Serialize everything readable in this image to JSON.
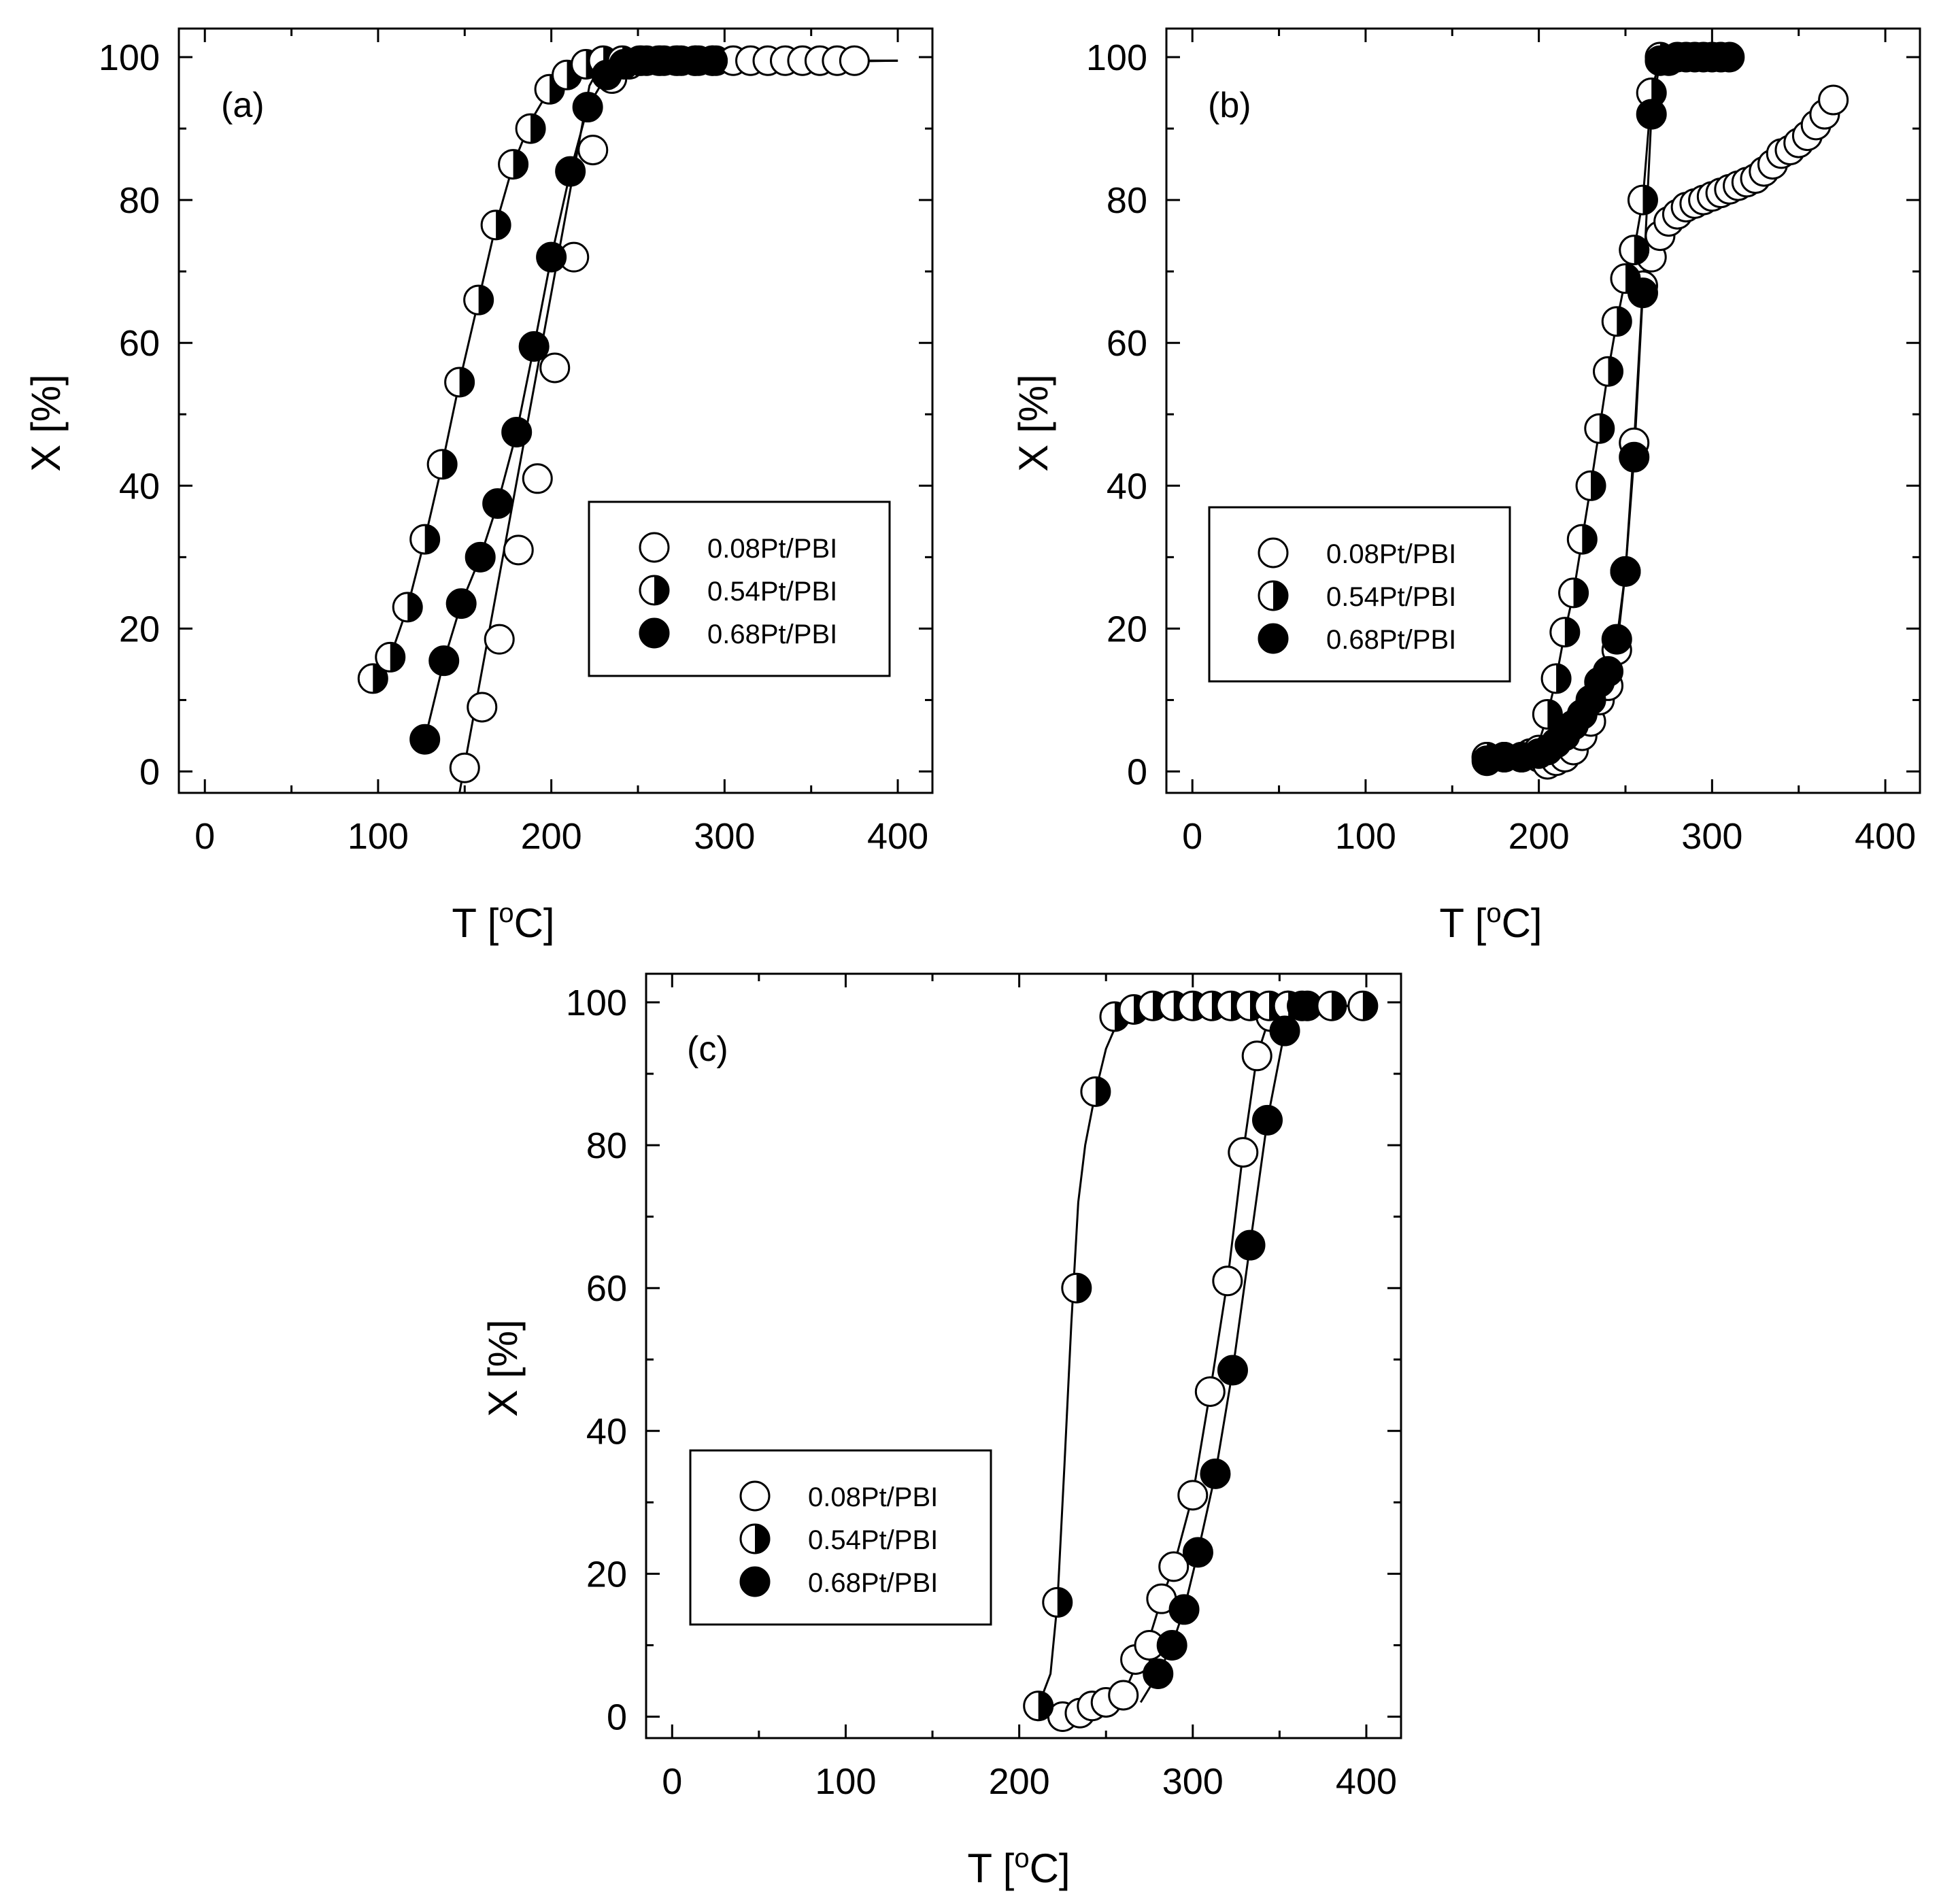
{
  "figure": {
    "colors": {
      "ink": "#000000",
      "background": "#ffffff",
      "open_fill": "#ffffff",
      "filled_fill": "#000000"
    }
  },
  "chart_data": [
    {
      "type": "scatter",
      "panel_label": "(a)",
      "xlabel": "T [oC]",
      "ylabel": "X [%]",
      "xlim": [
        -15,
        420
      ],
      "ylim": [
        -3,
        104
      ],
      "xticks": [
        0,
        100,
        200,
        300,
        400
      ],
      "yticks": [
        0,
        20,
        40,
        60,
        80,
        100
      ],
      "legend_position": "center-right",
      "series": [
        {
          "name": "0.08Pt/PBI",
          "marker": "open-circle",
          "x": [
            150,
            160,
            170,
            181,
            192,
            202,
            213,
            224,
            235,
            245,
            255,
            265,
            275,
            285,
            295,
            305,
            315,
            325,
            335,
            345,
            355,
            365,
            375
          ],
          "y": [
            0.5,
            9,
            18.5,
            31,
            41,
            56.5,
            72,
            87,
            97,
            99,
            99.5,
            99.5,
            99.5,
            99.5,
            99.5,
            99.5,
            99.5,
            99.5,
            99.5,
            99.5,
            99.5,
            99.5,
            99.5
          ],
          "fit_x": [
            147,
            222,
            230,
            400
          ],
          "fit_y": [
            -3,
            96,
            99.5,
            99.5
          ]
        },
        {
          "name": "0.54Pt/PBI",
          "marker": "half-filled-circle",
          "x": [
            97,
            107,
            117,
            127,
            137,
            147,
            158,
            168,
            178,
            188,
            199,
            209,
            220,
            230,
            241,
            251,
            262,
            272,
            283,
            293
          ],
          "y": [
            13,
            16,
            23,
            32.5,
            43,
            54.5,
            66,
            76.5,
            85,
            90,
            95.5,
            97.5,
            99,
            99.5,
            99.5,
            99.5,
            99.5,
            99.5,
            99.5,
            99.5
          ],
          "fit_x": [
            97,
            107,
            117,
            127,
            137,
            147,
            158,
            168,
            178,
            188,
            199,
            209,
            220,
            230,
            400
          ],
          "fit_y": [
            13,
            16,
            23,
            32.5,
            43,
            54.5,
            66,
            76.5,
            85,
            91,
            95.5,
            98,
            99,
            99.5,
            99.5
          ]
        },
        {
          "name": "0.68Pt/PBI",
          "marker": "filled-circle",
          "x": [
            127,
            138,
            148,
            159,
            169,
            180,
            190,
            200,
            211,
            221,
            232,
            242,
            252,
            263,
            273,
            283,
            293
          ],
          "y": [
            4.5,
            15.5,
            23.5,
            30,
            37.5,
            47.5,
            59.5,
            72,
            84,
            93,
            97.5,
            99,
            99.5,
            99.5,
            99.5,
            99.5,
            99.5
          ],
          "fit_x": [
            127,
            138,
            148,
            159,
            169,
            180,
            190,
            200,
            211,
            221,
            232,
            242,
            400
          ],
          "fit_y": [
            4.5,
            15.5,
            23.5,
            30,
            37.5,
            47.5,
            59.5,
            72,
            84,
            93,
            97.5,
            99,
            99.5
          ]
        }
      ]
    },
    {
      "type": "scatter",
      "panel_label": "(b)",
      "xlabel": "T [oC]",
      "ylabel": "X [%]",
      "xlim": [
        -15,
        420
      ],
      "ylim": [
        -3,
        104
      ],
      "xticks": [
        0,
        100,
        200,
        300,
        400
      ],
      "yticks": [
        0,
        20,
        40,
        60,
        80,
        100
      ],
      "legend_position": "center-left",
      "series": [
        {
          "name": "0.08Pt/PBI",
          "marker": "open-circle",
          "x": [
            170,
            180,
            190,
            200,
            205,
            210,
            215,
            220,
            225,
            230,
            235,
            240,
            245,
            250,
            255,
            260,
            265,
            270,
            275,
            280,
            285,
            290,
            295,
            300,
            305,
            310,
            315,
            320,
            325,
            330,
            335,
            340,
            345,
            350,
            355,
            360,
            365,
            370
          ],
          "y": [
            2,
            2,
            2,
            2,
            1,
            1.5,
            2,
            3,
            5,
            7,
            10,
            12,
            17,
            28,
            46,
            68,
            72,
            75,
            77,
            78,
            79,
            79.5,
            80,
            80.5,
            81,
            81.5,
            82,
            82.5,
            83,
            84,
            85,
            86.5,
            87,
            88,
            89,
            90.5,
            92,
            94
          ],
          "fit_x": [
            170,
            200,
            210,
            220,
            230,
            240,
            245,
            250,
            255,
            260,
            265,
            270,
            280,
            290,
            300,
            310,
            320,
            330,
            340,
            350,
            360,
            370
          ],
          "fit_y": [
            2,
            2,
            2,
            3,
            6,
            11,
            17,
            28,
            46,
            68,
            72,
            75,
            78,
            79.5,
            80.5,
            81.5,
            82.5,
            84,
            86.5,
            88,
            90.5,
            94
          ]
        },
        {
          "name": "0.54Pt/PBI",
          "marker": "half-filled-circle",
          "x": [
            170,
            180,
            190,
            195,
            200,
            205,
            210,
            215,
            220,
            225,
            230,
            235,
            240,
            245,
            250,
            255,
            260,
            265,
            270
          ],
          "y": [
            2,
            2,
            2,
            2.5,
            3,
            8,
            13,
            19.5,
            25,
            32.5,
            40,
            48,
            56,
            63,
            69,
            73,
            80,
            95,
            100
          ],
          "fit_x": [
            195,
            200,
            205,
            210,
            215,
            220,
            225,
            230,
            235,
            240,
            245,
            250,
            255,
            260,
            265,
            270
          ],
          "fit_y": [
            2.5,
            4,
            8,
            13,
            19.5,
            25,
            32.5,
            40,
            48,
            56,
            63,
            69,
            73,
            80,
            95,
            100
          ]
        },
        {
          "name": "0.68Pt/PBI",
          "marker": "filled-circle",
          "x": [
            170,
            180,
            190,
            200,
            205,
            210,
            215,
            220,
            225,
            230,
            235,
            240,
            245,
            250,
            255,
            260,
            265,
            270,
            275,
            280,
            285,
            290,
            295,
            300,
            305,
            310
          ],
          "y": [
            1.5,
            2,
            2,
            2.5,
            3,
            4,
            5,
            6.5,
            8,
            10,
            12.5,
            14,
            18.5,
            28,
            44,
            67,
            92,
            99.5,
            99.5,
            100,
            100,
            100,
            100,
            100,
            100,
            100
          ],
          "fit_x": [
            170,
            200,
            210,
            220,
            230,
            240,
            245,
            250,
            255,
            260,
            265,
            270,
            310
          ],
          "fit_y": [
            1.5,
            2.5,
            4,
            6.5,
            10,
            14,
            18.5,
            28,
            44,
            67,
            92,
            99.5,
            100
          ]
        }
      ]
    },
    {
      "type": "scatter",
      "panel_label": "(c)",
      "xlabel": "T [oC]",
      "ylabel": "X [%]",
      "xlim": [
        -15,
        420
      ],
      "ylim": [
        -3,
        104
      ],
      "xticks": [
        0,
        100,
        200,
        300,
        400
      ],
      "yticks": [
        0,
        20,
        40,
        60,
        80,
        100
      ],
      "legend_position": "bottom-left",
      "series": [
        {
          "name": "0.08Pt/PBI",
          "marker": "open-circle",
          "x": [
            225,
            235,
            242,
            250,
            260,
            267,
            275,
            282,
            289,
            300,
            310,
            320,
            329,
            337,
            345,
            355
          ],
          "y": [
            0,
            0.5,
            1.5,
            2,
            3,
            8,
            10,
            16.5,
            21,
            31,
            45.5,
            61,
            79,
            92.5,
            98,
            99.5
          ],
          "fit_x": [
            225,
            242,
            260,
            267,
            275,
            282,
            289,
            300,
            310,
            320,
            329,
            337,
            345,
            355,
            400
          ],
          "fit_y": [
            0,
            1.5,
            3,
            7,
            11,
            16.5,
            21,
            31,
            45.5,
            61,
            79,
            92.5,
            98.5,
            99.5,
            99.5
          ]
        },
        {
          "name": "0.54Pt/PBI",
          "marker": "half-filled-circle",
          "x": [
            211,
            222,
            233,
            244,
            255,
            266,
            277,
            289,
            300,
            311,
            322,
            333,
            344,
            355,
            366,
            380,
            398
          ],
          "y": [
            1.5,
            16,
            60,
            87.5,
            98,
            99,
            99.5,
            99.5,
            99.5,
            99.5,
            99.5,
            99.5,
            99.5,
            99.5,
            99.5,
            99.5,
            99.5
          ],
          "fit_x": [
            211,
            218,
            222,
            226,
            230,
            234,
            238,
            244,
            250,
            258,
            266,
            280,
            400
          ],
          "fit_y": [
            1.5,
            6,
            16,
            35,
            55,
            72,
            80,
            87.5,
            93.5,
            98,
            99,
            99.5,
            99.5
          ]
        },
        {
          "name": "0.68Pt/PBI",
          "marker": "filled-circle",
          "x": [
            280,
            288,
            295,
            303,
            313,
            323,
            333,
            343,
            353,
            363
          ],
          "y": [
            6,
            10,
            15,
            23,
            34,
            48.5,
            66,
            83.5,
            96,
            99.5
          ],
          "fit_x": [
            270,
            280,
            288,
            295,
            303,
            313,
            323,
            333,
            343,
            353,
            363,
            400
          ],
          "fit_y": [
            2,
            6,
            10,
            15,
            23,
            34,
            48.5,
            66,
            83.5,
            96,
            99.5,
            99.5
          ]
        }
      ]
    }
  ]
}
